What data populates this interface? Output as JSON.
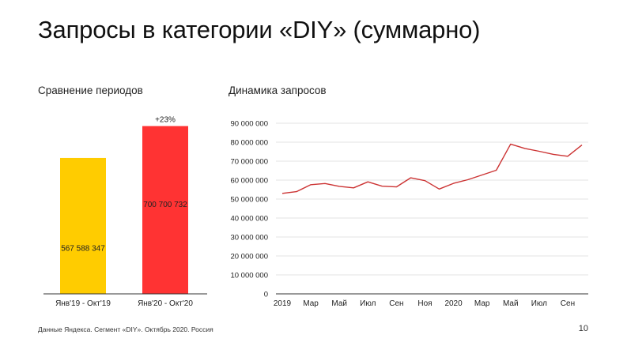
{
  "title": "Запросы в категории «DIY» (суммарно)",
  "left_subtitle": "Сравнение периодов",
  "right_subtitle": "Динамика запросов",
  "footer": "Данные Яндекса. Сегмент «DIY». Октябрь 2020. Россия",
  "page_number": "10",
  "colors": {
    "bar_yellow": "#FFCC00",
    "bar_red": "#FF3333",
    "line": "#CC3333",
    "grid": "#E3E3E3"
  },
  "chart_data": [
    {
      "type": "bar",
      "categories": [
        "Янв'19 - Окт'19",
        "Янв'20 - Окт'20"
      ],
      "values": [
        567588347,
        700700732
      ],
      "data_labels": [
        "567 588 347",
        "700 700 732"
      ],
      "annotation": "+23%",
      "bar_colors": [
        "#FFCC00",
        "#FF3333"
      ],
      "ylim": [
        0,
        800000000
      ],
      "grid": false
    },
    {
      "type": "line",
      "x": [
        "2019-01",
        "2019-02",
        "2019-03",
        "2019-04",
        "2019-05",
        "2019-06",
        "2019-07",
        "2019-08",
        "2019-09",
        "2019-10",
        "2019-11",
        "2019-12",
        "2020-01",
        "2020-02",
        "2020-03",
        "2020-04",
        "2020-05",
        "2020-06",
        "2020-07",
        "2020-08",
        "2020-09",
        "2020-10"
      ],
      "series": [
        {
          "values": [
            53000000,
            53900000,
            57600000,
            58200000,
            56700000,
            55900000,
            59100000,
            56800000,
            56400000,
            61200000,
            59700000,
            55300000,
            58300000,
            60200000,
            62700000,
            65200000,
            79000000,
            76700000,
            75200000,
            73600000,
            72600000,
            78500000
          ]
        }
      ],
      "x_tick_labels": [
        "2019",
        "Мар",
        "Май",
        "Июл",
        "Сен",
        "Ноя",
        "2020",
        "Мар",
        "Май",
        "Июл",
        "Сен"
      ],
      "x_tick_positions": [
        "2019-01",
        "2019-03",
        "2019-05",
        "2019-07",
        "2019-09",
        "2019-11",
        "2020-01",
        "2020-03",
        "2020-05",
        "2020-07",
        "2020-09"
      ],
      "y_tick_labels": [
        "0",
        "10 000 000",
        "20 000 000",
        "30 000 000",
        "40 000 000",
        "50 000 000",
        "60 000 000",
        "70 000 000",
        "80 000 000",
        "90 000 000"
      ],
      "y_tick_values": [
        0,
        10000000,
        20000000,
        30000000,
        40000000,
        50000000,
        60000000,
        70000000,
        80000000,
        90000000
      ],
      "ylim": [
        0,
        90000000
      ],
      "grid": true
    }
  ]
}
